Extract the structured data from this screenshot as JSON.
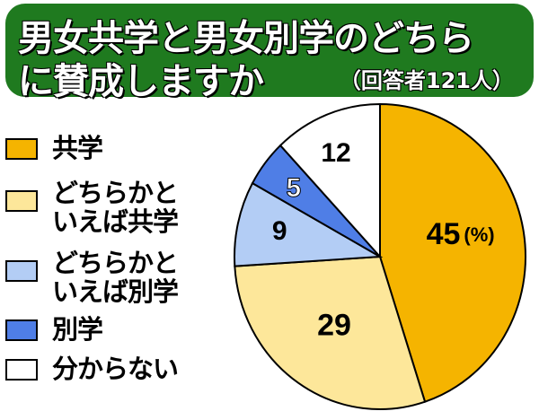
{
  "header": {
    "title_line1": "男女共学と男女別学のどちら",
    "title_line2": "に賛成しますか",
    "subtitle": "（回答者121人）"
  },
  "chart_data": {
    "type": "pie",
    "unit": "(%)",
    "title": "男女共学と男女別学のどちらに賛成しますか",
    "subtitle": "（回答者121人）",
    "legend_position": "left",
    "slices": [
      {
        "name": "共学",
        "value": 45,
        "color": "#f5b400"
      },
      {
        "name": "どちらかといえば共学",
        "value": 29,
        "color": "#fde79a"
      },
      {
        "name": "どちらかといえば別学",
        "value": 9,
        "color": "#b3cdf5"
      },
      {
        "name": "別学",
        "value": 5,
        "color": "#4f7ee6"
      },
      {
        "name": "分からない",
        "value": 12,
        "color": "#ffffff"
      }
    ]
  },
  "legend": {
    "items": [
      {
        "line1": "共学",
        "line2": ""
      },
      {
        "line1": "どちらかと",
        "line2": "いえば共学"
      },
      {
        "line1": "どちらかと",
        "line2": "いえば別学"
      },
      {
        "line1": "別学",
        "line2": ""
      },
      {
        "line1": "分からない",
        "line2": ""
      }
    ]
  }
}
